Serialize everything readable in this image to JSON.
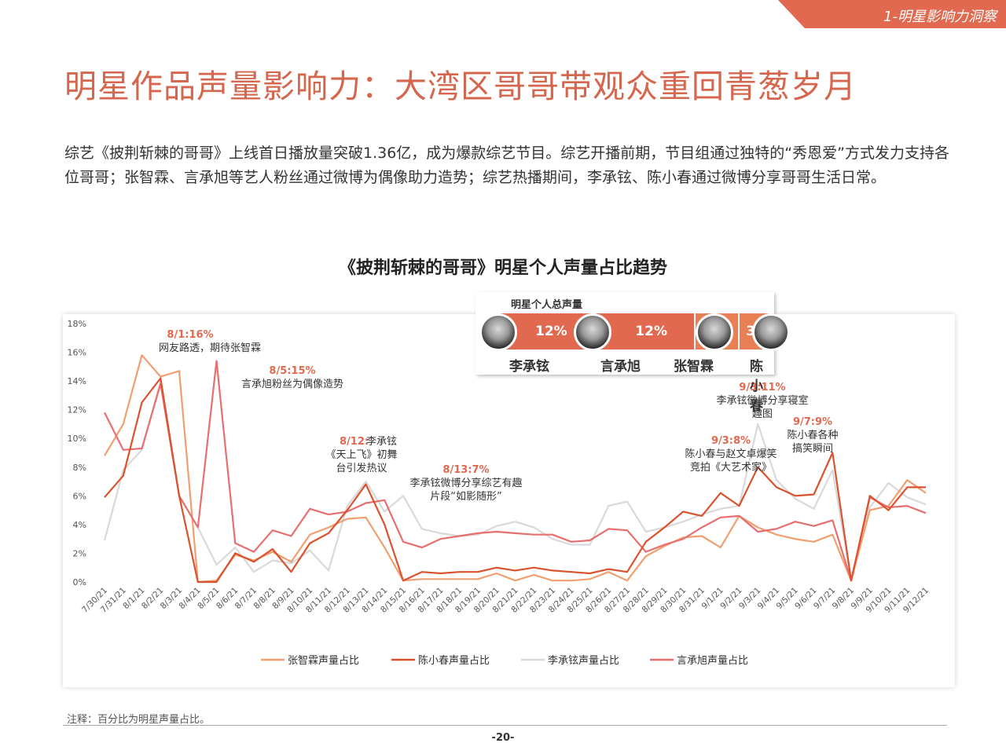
{
  "section_tag": "1-明星影响力洞察",
  "title": "明星作品声量影响力：大湾区哥哥带观众重回青葱岁月",
  "intro": "综艺《披荆斩棘的哥哥》上线首日播放量突破1.36亿，成为爆款综艺节目。综艺开播前期，节目组通过独特的“秀恩爱”方式发力支持各位哥哥；张智霖、言承旭等艺人粉丝通过微博为偶像助力造势；综艺热播期间，李承铉、陈小春通过微博分享哥哥生活日常。",
  "share_panel": {
    "title": "明星个人总声量",
    "items": [
      {
        "name": "李承铉",
        "share": "12%",
        "icon": "avatar-photo"
      },
      {
        "name": "言承旭",
        "share": "12%",
        "icon": "avatar-photo"
      },
      {
        "name": "张智霖",
        "share": "3%",
        "icon": "avatar-photo"
      },
      {
        "name": "陈小春",
        "share": "3%",
        "icon": "avatar-photo"
      }
    ],
    "color": "#e0694f"
  },
  "note": "注释：百分比为明星声量占比。",
  "page_number": "-20-",
  "chart_data": {
    "type": "line",
    "title": "《披荆斩棘的哥哥》明星个人声量占比趋势",
    "ylim": [
      0,
      18
    ],
    "yticks": [
      "0%",
      "2%",
      "4%",
      "6%",
      "8%",
      "10%",
      "12%",
      "14%",
      "16%",
      "18%"
    ],
    "grid": false,
    "legend_position": "bottom",
    "categories": [
      "7/30/21",
      "7/31/21",
      "8/1/21",
      "8/2/21",
      "8/3/21",
      "8/4/21",
      "8/5/21",
      "8/6/21",
      "8/7/21",
      "8/8/21",
      "8/9/21",
      "8/10/21",
      "8/11/21",
      "8/12/21",
      "8/13/21",
      "8/14/21",
      "8/15/21",
      "8/16/21",
      "8/17/21",
      "8/18/21",
      "8/19/21",
      "8/20/21",
      "8/21/21",
      "8/22/21",
      "8/23/21",
      "8/24/21",
      "8/25/21",
      "8/26/21",
      "8/27/21",
      "8/28/21",
      "8/29/21",
      "8/30/21",
      "8/31/21",
      "9/1/21",
      "9/2/21",
      "9/3/21",
      "9/4/21",
      "9/5/21",
      "9/6/21",
      "9/7/21",
      "9/8/21",
      "9/9/21",
      "9/10/21",
      "9/11/21",
      "9/12/21"
    ],
    "series": [
      {
        "name": "张智霖声量占比",
        "color": "#f0a070",
        "values": [
          8.8,
          11.0,
          15.8,
          14.3,
          14.7,
          0.0,
          0.1,
          1.9,
          1.5,
          2.1,
          1.4,
          3.3,
          3.8,
          4.4,
          4.5,
          2.4,
          0.1,
          0.2,
          0.2,
          0.2,
          0.2,
          0.6,
          0.1,
          0.5,
          0.1,
          0.1,
          0.2,
          0.7,
          0.1,
          1.8,
          2.5,
          3.1,
          3.2,
          2.4,
          4.6,
          3.8,
          3.3,
          3.0,
          2.8,
          3.3,
          0.1,
          5.0,
          5.3,
          7.1,
          6.2
        ]
      },
      {
        "name": "陈小春声量占比",
        "color": "#d9532f",
        "values": [
          5.9,
          7.4,
          12.5,
          14.2,
          6.0,
          0.0,
          0.0,
          2.0,
          1.4,
          2.3,
          0.7,
          2.7,
          3.4,
          5.0,
          6.8,
          4.0,
          0.1,
          0.7,
          0.6,
          0.7,
          0.7,
          1.0,
          0.8,
          1.0,
          0.8,
          0.7,
          0.6,
          0.9,
          0.7,
          2.8,
          3.8,
          4.9,
          4.6,
          6.2,
          5.3,
          8.0,
          6.6,
          6.0,
          6.1,
          9.0,
          0.1,
          6.0,
          5.0,
          6.6,
          6.6
        ]
      },
      {
        "name": "李承铉声量占比",
        "color": "#d9d9d9",
        "values": [
          2.9,
          7.8,
          9.2,
          14.0,
          6.0,
          3.8,
          1.2,
          2.4,
          0.7,
          1.5,
          1.3,
          2.2,
          0.8,
          5.3,
          7.0,
          4.9,
          6.0,
          3.7,
          3.4,
          3.2,
          3.3,
          3.9,
          4.2,
          3.8,
          3.0,
          2.6,
          2.6,
          5.3,
          5.6,
          3.5,
          3.8,
          4.2,
          4.7,
          5.1,
          5.3,
          11.0,
          7.1,
          5.8,
          5.1,
          7.8,
          0.1,
          5.2,
          6.9,
          5.9,
          5.4
        ]
      },
      {
        "name": "言承旭声量占比",
        "color": "#e86f6f",
        "values": [
          11.8,
          9.2,
          9.3,
          13.8,
          6.0,
          3.8,
          15.4,
          2.7,
          2.1,
          3.6,
          3.2,
          5.1,
          4.7,
          4.9,
          5.5,
          5.7,
          2.8,
          2.4,
          3.0,
          3.2,
          3.4,
          3.5,
          3.4,
          3.3,
          3.3,
          2.8,
          2.9,
          3.7,
          3.6,
          2.1,
          2.6,
          3.0,
          3.8,
          4.5,
          4.6,
          3.5,
          3.7,
          4.2,
          3.9,
          4.3,
          0.1,
          5.9,
          5.2,
          5.3,
          4.8
        ]
      }
    ],
    "annotations": [
      {
        "index": 2,
        "value": 16,
        "head": "8/1:16%",
        "lines": [
          "网友路透，期待张智霖"
        ]
      },
      {
        "index": 6,
        "value": 15,
        "head": "8/5:15%",
        "lines": [
          "言承旭粉丝为偶像造势"
        ]
      },
      {
        "index": 14,
        "value": 7,
        "head": "8/12:",
        "inline": "李承铉",
        "lines": [
          "《天上飞》初舞",
          "台引发热议"
        ]
      },
      {
        "index": 14,
        "value": 7,
        "head": "8/13:7%",
        "lines": [
          "李承铉微博分享综艺有趣",
          "片段“如影随形”"
        ]
      },
      {
        "index": 35,
        "value": 8,
        "head": "9/3:8%",
        "lines": [
          "陈小春与赵文卓爆笑",
          "竞拍《大艺术家》"
        ]
      },
      {
        "index": 35,
        "value": 11,
        "head": "9/3:11%",
        "lines": [
          "李承铉微博分享寝室",
          "趣图"
        ]
      },
      {
        "index": 39,
        "value": 9,
        "head": "9/7:9%",
        "lines": [
          "陈小春各种",
          "搞笑瞬间"
        ]
      }
    ]
  }
}
